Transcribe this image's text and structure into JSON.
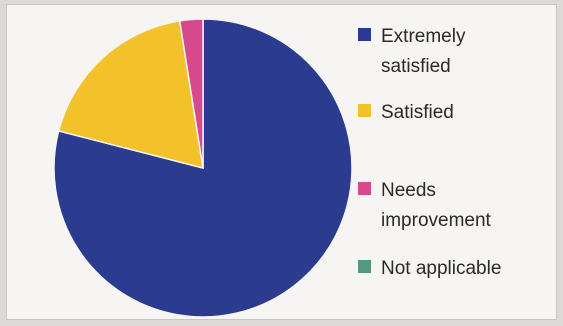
{
  "chart_data": {
    "type": "pie",
    "series": [
      {
        "name": "Extremely satisfied",
        "label_lines": [
          "Extremely",
          "satisfied"
        ],
        "value": 79,
        "color": "#2b3b8f"
      },
      {
        "name": "Satisfied",
        "label_lines": [
          "Satisfied"
        ],
        "value": 18.5,
        "color": "#f3c22b"
      },
      {
        "name": "Needs improvement",
        "label_lines": [
          "Needs",
          "improvement"
        ],
        "value": 2.5,
        "color": "#d64a8c"
      },
      {
        "name": "Not applicable",
        "label_lines": [
          "Not applicable"
        ],
        "value": 0,
        "color": "#4f9a80"
      }
    ],
    "legend": "right"
  }
}
